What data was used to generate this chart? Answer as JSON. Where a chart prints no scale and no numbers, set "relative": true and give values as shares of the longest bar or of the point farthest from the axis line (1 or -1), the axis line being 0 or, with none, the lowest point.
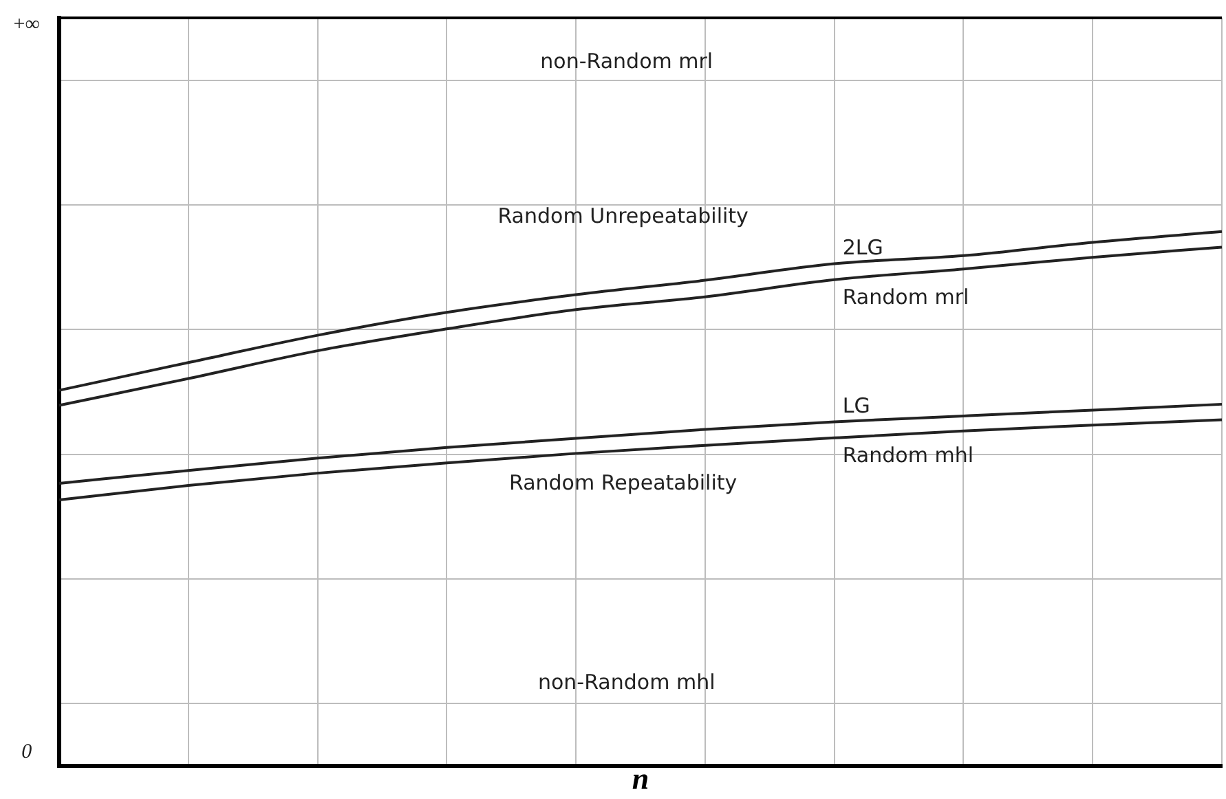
{
  "chart_data": {
    "type": "line",
    "xlabel": "n",
    "categories": [
      null,
      null,
      null,
      null,
      null,
      null,
      null,
      null,
      null,
      null
    ],
    "series": [
      {
        "name": "2LG",
        "color": "#222222",
        "values": [
          0.703,
          0.755,
          0.806,
          0.849,
          0.882,
          0.909,
          0.94,
          0.955,
          0.98,
          1
        ]
      },
      {
        "name": "Random mrl",
        "color": "#222222",
        "values": [
          0.675,
          0.725,
          0.777,
          0.818,
          0.854,
          0.878,
          0.91,
          0.93,
          0.952,
          0.971
        ]
      },
      {
        "name": "LG",
        "color": "#222222",
        "values": [
          0.529,
          0.553,
          0.576,
          0.596,
          0.613,
          0.63,
          0.644,
          0.655,
          0.666,
          0.677
        ]
      },
      {
        "name": "Random mhl",
        "color": "#222222",
        "values": [
          0.498,
          0.525,
          0.548,
          0.567,
          0.585,
          0.6,
          0.614,
          0.627,
          0.638,
          0.648
        ]
      }
    ],
    "relative": true,
    "annotations": [
      "non-Random mrl",
      "Random Unrepeatability",
      "Random Repeatability",
      "non-Random mhl",
      "+∞",
      "0"
    ],
    "grid": true,
    "legend": false,
    "marker": "none",
    "line_style": "solid"
  }
}
